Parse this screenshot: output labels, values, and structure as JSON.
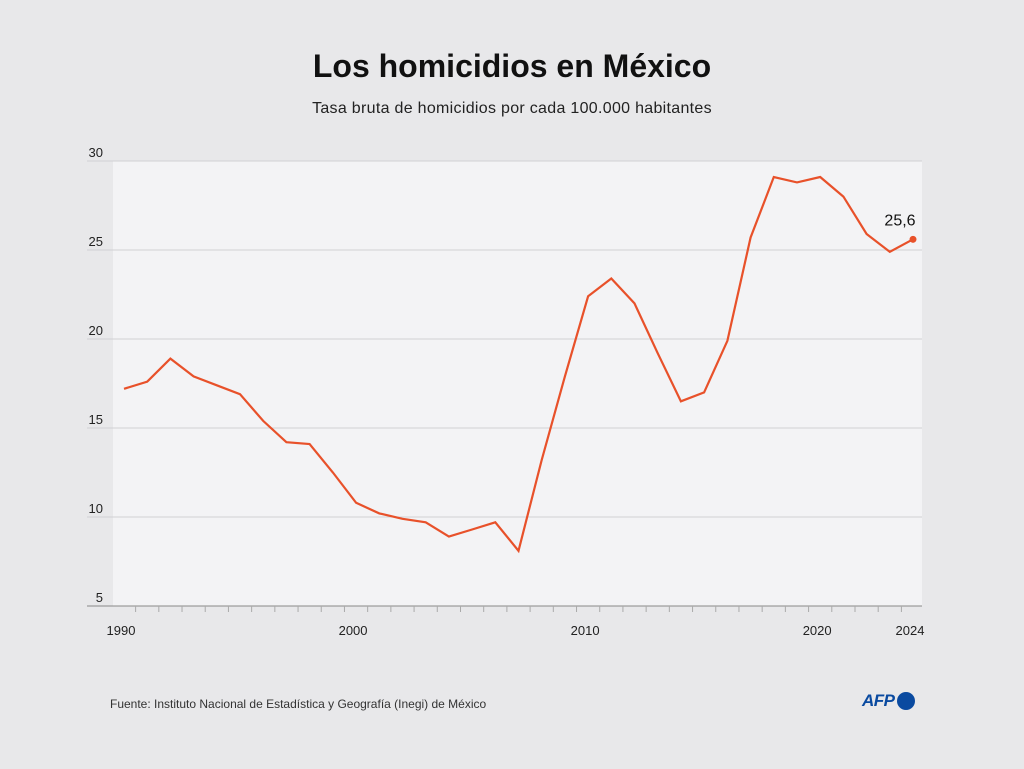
{
  "title": "Los homicidios en México",
  "subtitle": "Tasa bruta de homicidios por cada 100.000 habitantes",
  "source": "Fuente: Instituto Nacional de Estadística y Geografía (Inegi) de México",
  "logo_text": "AFP",
  "colors": {
    "line": "#e8512a",
    "plot_bg": "#f3f3f5",
    "grid": "#d0d0d4",
    "page_bg": "#e8e8ea",
    "logo": "#0a4aa0"
  },
  "chart_data": {
    "type": "line",
    "title": "Los homicidios en México",
    "ylabel": "Tasa bruta de homicidios por cada 100.000 habitantes",
    "xlabel": "",
    "x": [
      1990,
      1991,
      1992,
      1993,
      1994,
      1995,
      1996,
      1997,
      1998,
      1999,
      2000,
      2001,
      2002,
      2003,
      2004,
      2005,
      2006,
      2007,
      2008,
      2009,
      2010,
      2011,
      2012,
      2013,
      2014,
      2015,
      2016,
      2017,
      2018,
      2019,
      2020,
      2021,
      2022,
      2023,
      2024
    ],
    "series": [
      {
        "name": "Tasa de homicidios",
        "values": [
          17.2,
          17.6,
          18.9,
          17.9,
          17.4,
          16.9,
          15.4,
          14.2,
          14.1,
          12.5,
          10.8,
          10.2,
          9.9,
          9.7,
          8.9,
          9.3,
          9.7,
          8.1,
          13.2,
          17.9,
          22.4,
          23.4,
          22.0,
          19.2,
          16.5,
          17.0,
          19.9,
          25.7,
          29.1,
          28.8,
          29.1,
          28.0,
          25.9,
          24.9,
          25.6
        ]
      }
    ],
    "xticks": [
      "1990",
      "2000",
      "2010",
      "2020",
      "2024"
    ],
    "yticks": [
      "5",
      "10",
      "15",
      "20",
      "25",
      "30"
    ],
    "xlim": [
      1989.5,
      2024.5
    ],
    "ylim": [
      5,
      30
    ],
    "annotation": {
      "x": 2024,
      "y": 25.6,
      "label": "25,6"
    },
    "grid": true
  }
}
